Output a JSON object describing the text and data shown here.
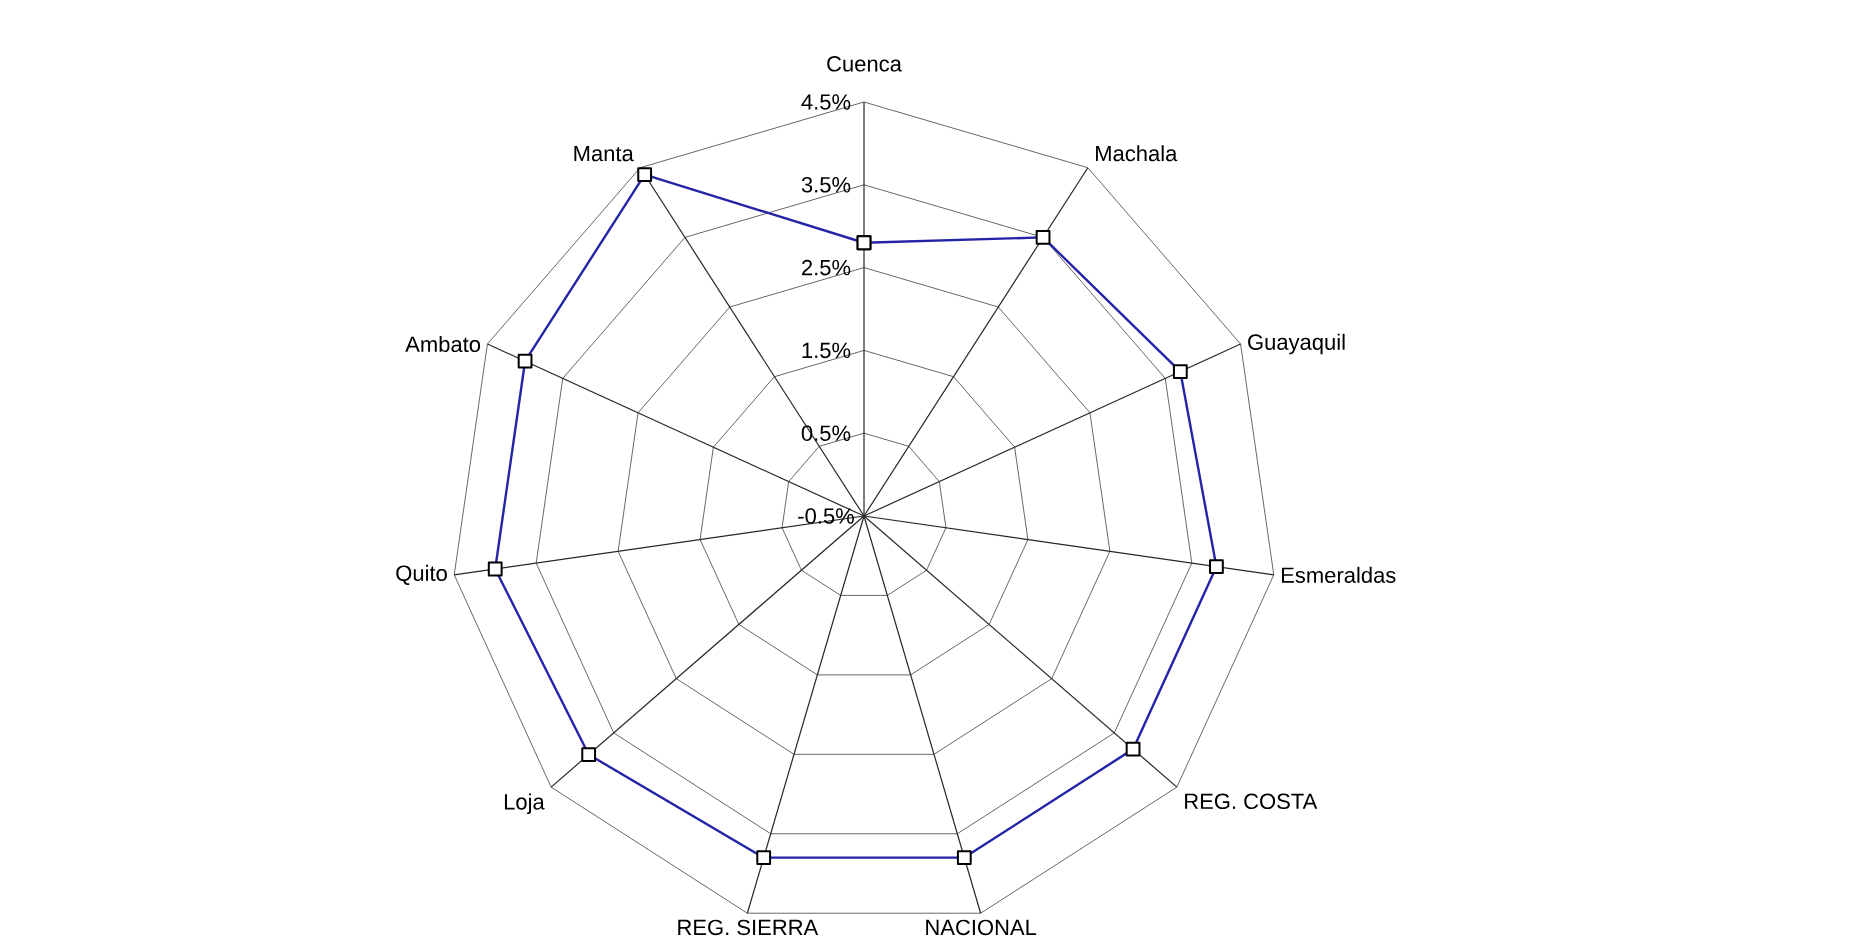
{
  "chart_data": {
    "type": "radar",
    "categories": [
      "Cuenca",
      "Machala",
      "Guayaquil",
      "Esmeraldas",
      "REG. COSTA",
      "NACIONAL",
      "REG. SIERRA",
      "Loja",
      "Quito",
      "Ambato",
      "Manta"
    ],
    "series": [
      {
        "color": "#2424a8",
        "values": [
          2.8,
          3.5,
          3.7,
          3.8,
          3.8,
          3.8,
          3.8,
          3.9,
          4.0,
          4.0,
          4.4
        ]
      }
    ],
    "ylim": [
      -0.5,
      4.5
    ],
    "yticks": [
      {
        "value": -0.5,
        "label": "-0.5%"
      },
      {
        "value": 0.5,
        "label": "0.5%"
      },
      {
        "value": 1.5,
        "label": "1.5%"
      },
      {
        "value": 2.5,
        "label": "2.5%"
      },
      {
        "value": 3.5,
        "label": "3.5%"
      },
      {
        "value": 4.5,
        "label": "4.5%"
      }
    ],
    "marker": "square",
    "grid": true
  }
}
